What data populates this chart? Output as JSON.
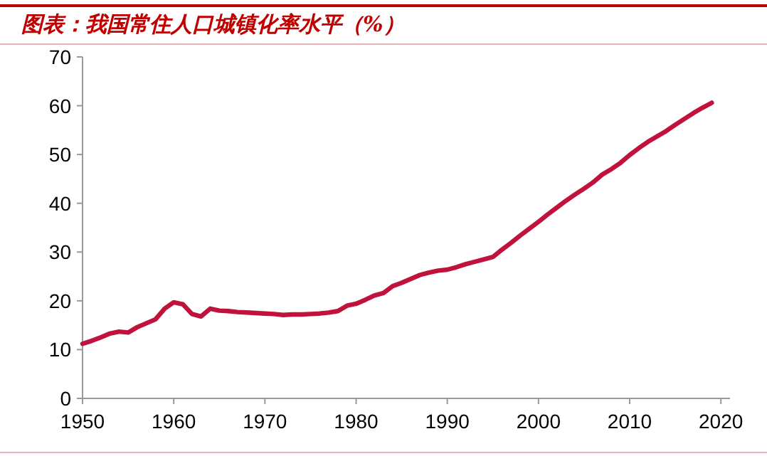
{
  "chart_data": {
    "type": "line",
    "title": "图表：我国常住人口城镇化率水平（%）",
    "x": [
      1950,
      1951,
      1952,
      1953,
      1954,
      1955,
      1956,
      1957,
      1958,
      1959,
      1960,
      1961,
      1962,
      1963,
      1964,
      1965,
      1966,
      1967,
      1968,
      1969,
      1970,
      1971,
      1972,
      1973,
      1974,
      1975,
      1976,
      1977,
      1978,
      1979,
      1980,
      1981,
      1982,
      1983,
      1984,
      1985,
      1986,
      1987,
      1988,
      1989,
      1990,
      1991,
      1992,
      1993,
      1994,
      1995,
      1996,
      1997,
      1998,
      1999,
      2000,
      2001,
      2002,
      2003,
      2004,
      2005,
      2006,
      2007,
      2008,
      2009,
      2010,
      2011,
      2012,
      2013,
      2014,
      2015,
      2016,
      2017,
      2018,
      2019
    ],
    "series": [
      {
        "color": "#c0123c",
        "values": [
          11.2,
          11.8,
          12.5,
          13.3,
          13.7,
          13.5,
          14.6,
          15.4,
          16.2,
          18.4,
          19.7,
          19.3,
          17.3,
          16.8,
          18.4,
          18.0,
          17.9,
          17.7,
          17.6,
          17.5,
          17.4,
          17.3,
          17.1,
          17.2,
          17.2,
          17.3,
          17.4,
          17.6,
          17.9,
          19.0,
          19.4,
          20.2,
          21.1,
          21.6,
          23.0,
          23.7,
          24.5,
          25.3,
          25.8,
          26.2,
          26.4,
          26.9,
          27.5,
          28.0,
          28.5,
          29.0,
          30.5,
          31.9,
          33.4,
          34.8,
          36.2,
          37.7,
          39.1,
          40.5,
          41.8,
          43.0,
          44.3,
          45.9,
          47.0,
          48.3,
          49.9,
          51.3,
          52.6,
          53.7,
          54.8,
          56.1,
          57.3,
          58.5,
          59.6,
          60.6
        ]
      }
    ],
    "xlim": [
      1950,
      2021
    ],
    "xticks": [
      1950,
      1960,
      1970,
      1980,
      1990,
      2000,
      2010,
      2020
    ],
    "ylim": [
      0,
      70
    ],
    "yticks": [
      0,
      10,
      20,
      30,
      40,
      50,
      60,
      70
    ],
    "grid": false,
    "marker": "none",
    "line_style": "solid"
  }
}
